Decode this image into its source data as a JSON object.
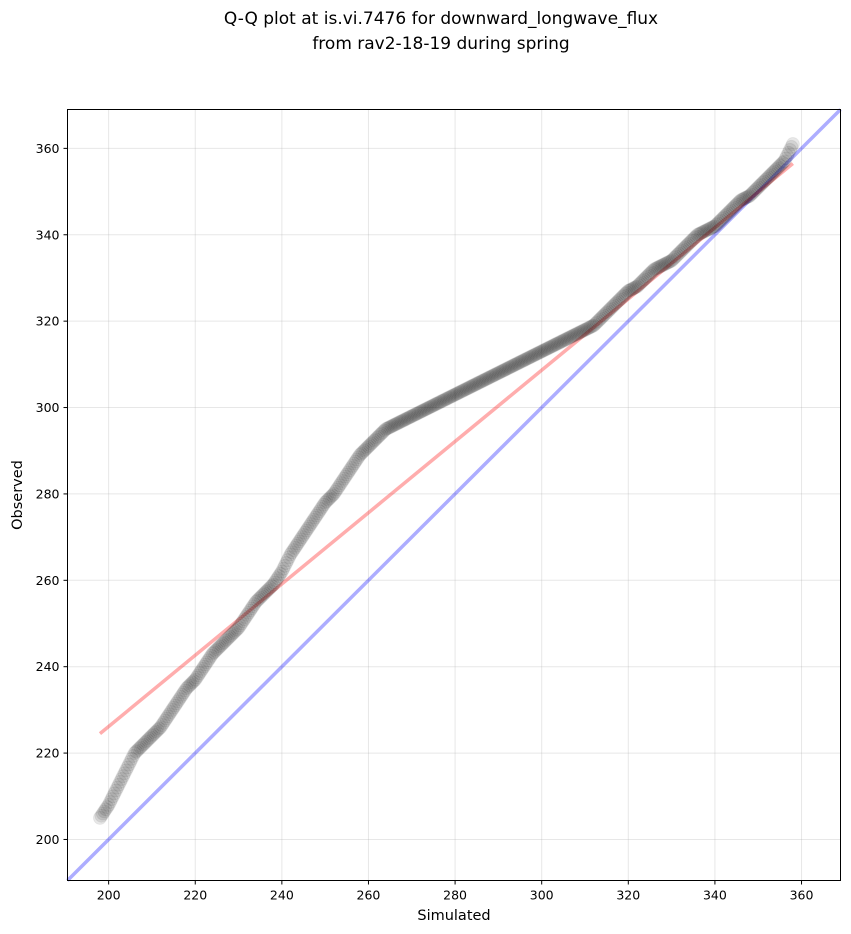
{
  "chart_data": {
    "type": "scatter",
    "title_line1": "Q-Q plot at is.vi.7476 for downward_longwave_flux",
    "title_line2": "from rav2-18-19 during spring",
    "xlabel": "Simulated",
    "ylabel": "Observed",
    "xlim": [
      190.5,
      369
    ],
    "ylim": [
      190.5,
      369
    ],
    "xticks": [
      200,
      220,
      240,
      260,
      280,
      300,
      320,
      340,
      360
    ],
    "yticks": [
      200,
      220,
      240,
      260,
      280,
      300,
      320,
      340,
      360
    ],
    "grid": true,
    "colors": {
      "points": "#000000",
      "identity_line": "#0000ff",
      "fit_line": "#ff0000"
    },
    "identity_line": {
      "x": [
        190.5,
        369
      ],
      "y": [
        190.5,
        369
      ]
    },
    "fit_line": {
      "x": [
        198,
        358
      ],
      "y": [
        224.5,
        356.5
      ]
    },
    "quantile_curve": {
      "x": [
        198,
        200,
        202,
        204,
        206,
        208,
        210,
        212,
        214,
        216,
        218,
        220,
        222,
        224,
        226,
        228,
        230,
        232,
        234,
        236,
        238,
        240,
        242,
        244,
        246,
        248,
        250,
        252,
        254,
        256,
        258,
        260,
        262,
        264,
        266,
        268,
        270,
        272,
        274,
        276,
        278,
        280,
        282,
        284,
        286,
        288,
        290,
        292,
        294,
        296,
        298,
        300,
        302,
        304,
        306,
        308,
        310,
        312,
        314,
        316,
        318,
        320,
        322,
        324,
        326,
        328,
        330,
        332,
        334,
        336,
        338,
        340,
        342,
        344,
        346,
        348,
        350,
        352,
        354,
        356,
        358
      ],
      "y": [
        205,
        208,
        212,
        216,
        220,
        222,
        224,
        226,
        229,
        232,
        235,
        237,
        240,
        243,
        245,
        247,
        249,
        252,
        255,
        257,
        259,
        262,
        266,
        269,
        272,
        275,
        278,
        280,
        283,
        286,
        289,
        291,
        293,
        295,
        296,
        297,
        298,
        299,
        300,
        301,
        302,
        303,
        304,
        305,
        306,
        307,
        308,
        309,
        310,
        311,
        312,
        313,
        314,
        315,
        316,
        317,
        318,
        319,
        321,
        323,
        325,
        327,
        328,
        330,
        332,
        333,
        334,
        336,
        338,
        340,
        341,
        342,
        344,
        346,
        348,
        349,
        351,
        353,
        355,
        357,
        361
      ]
    }
  }
}
